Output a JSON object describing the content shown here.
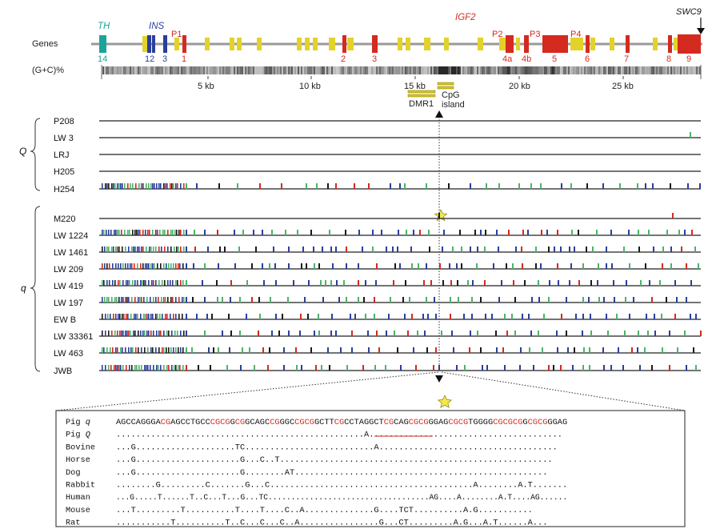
{
  "genes": {
    "row_label": "Genes",
    "gc_label": "(G+C)%",
    "th": "TH",
    "ins": "INS",
    "igf2": "IGF2",
    "swc9": "SWC9",
    "p1": "P1",
    "p2": "P2",
    "p3": "P3",
    "p4": "P4",
    "exon_labels": [
      "14",
      "12",
      "3",
      "1",
      "2",
      "3",
      "4a",
      "4b",
      "5",
      "6",
      "7",
      "8",
      "9"
    ],
    "scale_ticks": [
      "5 kb",
      "10 kb",
      "15 kb",
      "20 kb",
      "25 kb"
    ],
    "dmr1": "DMR1",
    "cpg_line1": "CpG",
    "cpg_line2": "island"
  },
  "groups": {
    "big_q": "Q",
    "small_q": "q"
  },
  "haplotypes": {
    "Q": [
      "P208",
      "LW 3",
      "LRJ",
      "H205",
      "H254"
    ],
    "q": [
      "M220",
      "LW 1224",
      "LW 1461",
      "LW 209",
      "LW 419",
      "LW 197",
      "EW B",
      "LW 33361",
      "LW 463",
      "JWB"
    ]
  },
  "mark_colors": {
    "blue": "#2a3f9c",
    "green": "#4bb36a",
    "red": "#d42a1f",
    "black": "#1a1a1a",
    "yellow": "#e3d22a",
    "dark_red": "#b81e16"
  },
  "alignment": {
    "rows": [
      {
        "species": "Pig",
        "suffix": "q",
        "seq": "AGCCAGGGACGAGCCTGCCCGCGGCGGCAGCCGGGCCGCGGCTTCGCCTAGGCTCGCAGCGCGGGAGCGCGTGGGGCGCGCGGCGCGGGAG"
      },
      {
        "species": "Pig",
        "suffix": "Q",
        "seq": "..................................................A......................................."
      },
      {
        "species": "Bovine",
        "suffix": "",
        "seq": "...G....................TC..........................A...................................."
      },
      {
        "species": "Horse",
        "suffix": "",
        "seq": "...G.....................G...C..T......................................................."
      },
      {
        "species": "Dog",
        "suffix": "",
        "seq": "...G.....................G........AT..................................................."
      },
      {
        "species": "Rabbit",
        "suffix": "",
        "seq": "........G.........C.......G...C.........................................A........A.T......."
      },
      {
        "species": "Human",
        "suffix": "",
        "seq": "...G.....T......T..C...T...G...TC...................................AG....A........A.T....AG......"
      },
      {
        "species": "Mouse",
        "suffix": "",
        "seq": "...T.........T..........T....T....C..A..............G....TCT..........A.G..........."
      },
      {
        "species": "Rat",
        "suffix": "",
        "seq": "...........T..........T..C...C...C..A................G...CT.........A.G...A.T......A..."
      }
    ]
  }
}
